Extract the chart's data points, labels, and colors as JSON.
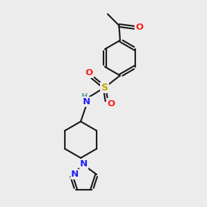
{
  "background_color": "#ececec",
  "bond_color": "#1a1a1a",
  "nitrogen_color": "#2020ff",
  "oxygen_color": "#ff2020",
  "sulfur_color": "#c8a800",
  "nh_color": "#5f9ea0",
  "line_width": 1.6,
  "dbo": 0.055,
  "figsize": [
    3.0,
    3.0
  ],
  "dpi": 100,
  "xlim": [
    0,
    10
  ],
  "ylim": [
    0,
    10
  ]
}
